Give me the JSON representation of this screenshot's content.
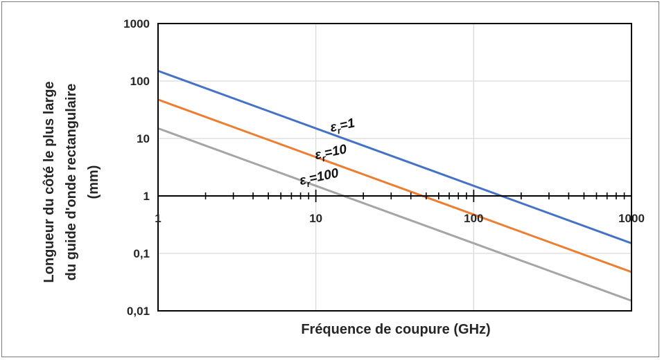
{
  "chart_data": {
    "type": "line",
    "xlabel": "Fréquence de coupure (GHz)",
    "ylabel_lines": [
      "Longueur du côté le plus large",
      "du guide d'onde rectangulaire",
      "(mm)"
    ],
    "x_scale": "log",
    "y_scale": "log",
    "xlim": [
      1,
      1000
    ],
    "ylim": [
      0.01,
      1000
    ],
    "x_ticks": [
      {
        "value": 1,
        "label": "1"
      },
      {
        "value": 10,
        "label": "10"
      },
      {
        "value": 100,
        "label": "100"
      },
      {
        "value": 1000,
        "label": "1000"
      }
    ],
    "y_ticks": [
      {
        "value": 1000,
        "label": "1000"
      },
      {
        "value": 100,
        "label": "100"
      },
      {
        "value": 10,
        "label": "10"
      },
      {
        "value": 1,
        "label": "1"
      },
      {
        "value": 0.1,
        "label": "0,1"
      },
      {
        "value": 0.01,
        "label": "0,01"
      }
    ],
    "grid": true,
    "x_axis_crosses_at_y": 1,
    "series": [
      {
        "label_main": "ε",
        "label_sub": "r",
        "label_rest": "=1",
        "color": "#4472c4",
        "x": [
          1,
          1000
        ],
        "y": [
          150,
          0.15
        ],
        "label_at": {
          "x": 12.5,
          "y": 13
        }
      },
      {
        "label_main": "ε",
        "label_sub": "r",
        "label_rest": "=10",
        "color": "#ed7d31",
        "x": [
          1,
          1000
        ],
        "y": [
          47.4,
          0.0474
        ],
        "label_at": {
          "x": 10,
          "y": 4.3
        }
      },
      {
        "label_main": "ε",
        "label_sub": "r",
        "label_rest": "=100",
        "color": "#a5a5a5",
        "x": [
          1,
          1000
        ],
        "y": [
          15,
          0.015
        ],
        "label_at": {
          "x": 8,
          "y": 1.55
        }
      }
    ]
  }
}
